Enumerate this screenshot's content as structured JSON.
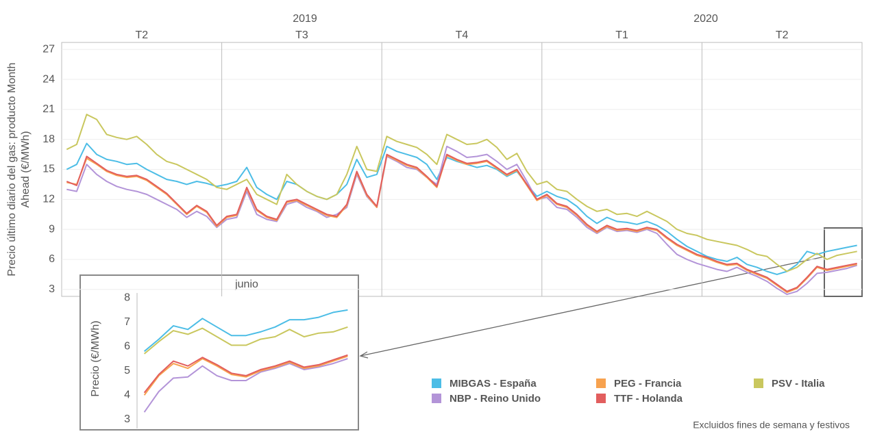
{
  "chart_data": [
    {
      "type": "line",
      "y_label": [
        "Precio último diario del gas: producto Month",
        "Ahead (€/MWh)"
      ],
      "years": [
        "2019",
        "2020"
      ],
      "quarters": [
        "T2",
        "T3",
        "T4",
        "T1",
        "T2"
      ],
      "ylim": [
        2.3,
        27.7
      ],
      "yticks": [
        3,
        6,
        9,
        12,
        15,
        18,
        21,
        24,
        27
      ],
      "grid": true,
      "series": [
        {
          "name": "MIBGAS - España",
          "color": "#4cbde6",
          "values": [
            15.0,
            15.5,
            17.6,
            16.5,
            16.0,
            15.8,
            15.5,
            15.6,
            15.0,
            14.5,
            14.0,
            13.8,
            13.5,
            13.8,
            13.6,
            13.3,
            13.5,
            13.8,
            15.2,
            13.2,
            12.5,
            12.0,
            13.8,
            13.5,
            12.8,
            12.3,
            12.0,
            12.5,
            13.5,
            16.0,
            14.2,
            14.5,
            17.3,
            16.8,
            16.5,
            16.2,
            15.5,
            14.0,
            16.2,
            15.8,
            15.5,
            15.2,
            15.4,
            15.0,
            14.3,
            14.8,
            13.5,
            12.3,
            12.8,
            12.3,
            12.0,
            11.3,
            10.3,
            9.6,
            10.2,
            9.8,
            9.7,
            9.5,
            9.8,
            9.4,
            8.8,
            8.0,
            7.3,
            6.8,
            6.3,
            6.0,
            5.8,
            6.2,
            5.5,
            5.2,
            4.8,
            4.5,
            4.8,
            5.5,
            6.8,
            6.5,
            6.8,
            7.0,
            7.2,
            7.4
          ]
        },
        {
          "name": "NBP - Reino Unido",
          "color": "#b394d8",
          "values": [
            13.0,
            12.8,
            15.5,
            14.5,
            13.8,
            13.3,
            13.0,
            12.8,
            12.5,
            12.0,
            11.5,
            11.0,
            10.2,
            10.8,
            10.3,
            9.2,
            10.0,
            10.2,
            12.8,
            10.5,
            10.0,
            9.8,
            11.5,
            11.8,
            11.2,
            10.8,
            10.2,
            10.5,
            11.2,
            14.5,
            12.3,
            11.2,
            16.3,
            15.8,
            15.2,
            15.0,
            14.2,
            13.5,
            17.3,
            16.8,
            16.2,
            16.3,
            16.5,
            15.8,
            15.0,
            15.5,
            13.8,
            12.0,
            12.2,
            11.2,
            11.0,
            10.2,
            9.2,
            8.6,
            9.2,
            8.8,
            8.9,
            8.7,
            9.0,
            8.6,
            7.5,
            6.5,
            6.0,
            5.6,
            5.3,
            5.0,
            4.8,
            5.2,
            4.7,
            4.3,
            3.8,
            3.1,
            2.5,
            2.8,
            3.6,
            4.6,
            4.7,
            4.9,
            5.1,
            5.4
          ]
        },
        {
          "name": "PEG - Francia",
          "color": "#f7a24f",
          "values": [
            13.7,
            13.5,
            16.1,
            15.5,
            14.8,
            14.4,
            14.2,
            14.3,
            13.9,
            13.2,
            12.5,
            11.5,
            10.5,
            11.3,
            10.7,
            9.3,
            10.2,
            10.4,
            13.1,
            10.9,
            10.2,
            9.9,
            11.7,
            11.9,
            11.4,
            10.9,
            10.4,
            10.2,
            11.4,
            14.7,
            12.4,
            11.2,
            16.4,
            15.9,
            15.4,
            15.1,
            14.2,
            13.2,
            16.4,
            15.9,
            15.5,
            15.6,
            15.8,
            15.1,
            14.4,
            14.9,
            13.4,
            11.9,
            12.4,
            11.5,
            11.2,
            10.4,
            9.4,
            8.7,
            9.3,
            8.9,
            9.0,
            8.8,
            9.1,
            8.9,
            8.1,
            7.4,
            6.9,
            6.4,
            6.1,
            5.7,
            5.4,
            5.5,
            4.9,
            4.5,
            4.1,
            3.4,
            2.7,
            3.1,
            4.1,
            5.2,
            4.9,
            5.1,
            5.3,
            5.5
          ]
        },
        {
          "name": "TTF - Holanda",
          "color": "#e25e5e",
          "values": [
            13.8,
            13.4,
            16.3,
            15.6,
            14.9,
            14.5,
            14.3,
            14.4,
            14.0,
            13.3,
            12.6,
            11.6,
            10.6,
            11.4,
            10.8,
            9.4,
            10.3,
            10.5,
            13.2,
            11.0,
            10.3,
            10.0,
            11.8,
            12.0,
            11.5,
            11.0,
            10.5,
            10.3,
            11.5,
            14.8,
            12.5,
            11.3,
            16.5,
            16.0,
            15.5,
            15.2,
            14.3,
            13.3,
            16.5,
            16.0,
            15.6,
            15.7,
            15.9,
            15.2,
            14.5,
            15.0,
            13.5,
            12.0,
            12.5,
            11.6,
            11.3,
            10.5,
            9.5,
            8.8,
            9.4,
            9.0,
            9.1,
            8.9,
            9.2,
            9.0,
            8.2,
            7.5,
            7.0,
            6.5,
            6.2,
            5.8,
            5.5,
            5.6,
            5.0,
            4.6,
            4.2,
            3.5,
            2.8,
            3.2,
            4.2,
            5.3,
            5.0,
            5.2,
            5.4,
            5.6
          ]
        },
        {
          "name": "PSV - Italia",
          "color": "#c9c75e",
          "values": [
            17.0,
            17.5,
            20.5,
            20.0,
            18.5,
            18.2,
            18.0,
            18.3,
            17.5,
            16.5,
            15.8,
            15.5,
            15.0,
            14.5,
            14.0,
            13.2,
            13.0,
            13.5,
            14.0,
            12.5,
            12.0,
            11.5,
            14.5,
            13.5,
            12.8,
            12.3,
            12.0,
            12.5,
            14.5,
            17.3,
            15.0,
            14.8,
            18.3,
            17.8,
            17.5,
            17.2,
            16.5,
            15.5,
            18.5,
            18.0,
            17.5,
            17.6,
            18.0,
            17.2,
            16.0,
            16.6,
            14.8,
            13.5,
            13.8,
            13.0,
            12.8,
            12.0,
            11.3,
            10.8,
            11.0,
            10.5,
            10.6,
            10.3,
            10.8,
            10.3,
            9.8,
            9.0,
            8.6,
            8.4,
            8.0,
            7.8,
            7.6,
            7.4,
            7.0,
            6.5,
            6.3,
            5.5,
            4.8,
            5.2,
            6.0,
            6.6,
            6.0,
            6.4,
            6.6,
            6.8
          ]
        }
      ]
    },
    {
      "type": "line",
      "title": "junio",
      "y_label": [
        "Precio (€/MWh)"
      ],
      "ylim": [
        2.8,
        8.2
      ],
      "yticks": [
        3,
        4,
        5,
        6,
        7,
        8
      ],
      "grid": false,
      "series": [
        {
          "color": "#4cbde6",
          "values": [
            5.8,
            6.3,
            6.85,
            6.7,
            7.15,
            6.8,
            6.45,
            6.45,
            6.6,
            6.8,
            7.1,
            7.1,
            7.2,
            7.4,
            7.5
          ]
        },
        {
          "color": "#b394d8",
          "values": [
            3.3,
            4.15,
            4.7,
            4.75,
            5.2,
            4.8,
            4.6,
            4.6,
            4.95,
            5.1,
            5.3,
            5.05,
            5.15,
            5.3,
            5.5
          ]
        },
        {
          "color": "#f7a24f",
          "values": [
            4.0,
            4.8,
            5.3,
            5.1,
            5.5,
            5.2,
            4.85,
            4.75,
            5.0,
            5.15,
            5.35,
            5.1,
            5.2,
            5.4,
            5.6
          ]
        },
        {
          "color": "#e25e5e",
          "values": [
            4.1,
            4.85,
            5.4,
            5.2,
            5.55,
            5.25,
            4.9,
            4.8,
            5.05,
            5.2,
            5.4,
            5.15,
            5.25,
            5.45,
            5.65
          ]
        },
        {
          "color": "#c9c75e",
          "values": [
            5.7,
            6.2,
            6.65,
            6.5,
            6.75,
            6.4,
            6.05,
            6.05,
            6.3,
            6.4,
            6.7,
            6.4,
            6.55,
            6.6,
            6.8
          ]
        }
      ]
    }
  ],
  "note": "Excluidos fines de semana y festivos"
}
